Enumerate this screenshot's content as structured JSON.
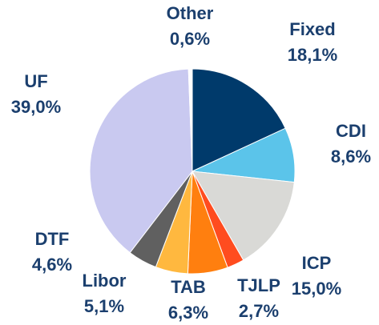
{
  "chart_data": {
    "type": "pie",
    "categories": [
      "Fixed",
      "CDI",
      "ICP",
      "TJLP",
      "TAB",
      "Libor",
      "DTF",
      "UF",
      "Other"
    ],
    "values": [
      18.1,
      8.6,
      15.0,
      2.7,
      6.3,
      5.1,
      4.6,
      39.0,
      0.6
    ],
    "value_labels": [
      "18,1%",
      "8,6%",
      "15,0%",
      "2,7%",
      "6,3%",
      "5,1%",
      "4,6%",
      "39,0%",
      "0,6%"
    ],
    "colors": [
      "#003a6b",
      "#5bc4ea",
      "#d9d9d6",
      "#ff4c1f",
      "#ff7f0f",
      "#ffb83f",
      "#606060",
      "#c9c9f0",
      "#ffffff"
    ]
  }
}
